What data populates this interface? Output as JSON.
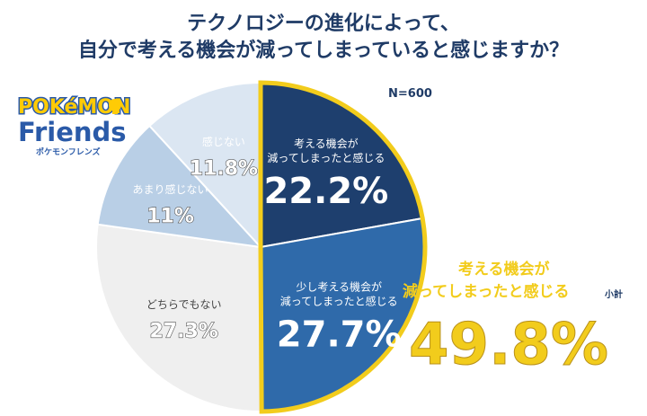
{
  "title_line1": "テクノロジーの進化によって、",
  "title_line2": "自分で考える機会が減ってしまっていると感じますか？",
  "sample_size": "N=600",
  "logo": {
    "brand": "POKéMON",
    "name": "Friends",
    "subtitle": "ポケモンフレンズ"
  },
  "colors": {
    "navy": "#1e3f6e",
    "blue": "#2f6aaa",
    "light_gray": "#efefef",
    "pale_blue": "#b9cfe6",
    "very_pale_blue": "#dbe6f2",
    "highlight": "#f2cc1c"
  },
  "chart_data": {
    "type": "pie",
    "start_angle_deg": 0,
    "direction": "clockwise",
    "slices": [
      {
        "label_lines": [
          "考える機会が",
          "減ってしまったと感じる"
        ],
        "value": 22.2,
        "value_text": "22.2%",
        "color": "#1e3f6e"
      },
      {
        "label_lines": [
          "少し考える機会が",
          "減ってしまったと感じる"
        ],
        "value": 27.7,
        "value_text": "27.7%",
        "color": "#2f6aaa"
      },
      {
        "label_lines": [
          "どちらでもない"
        ],
        "value": 27.3,
        "value_text": "27.3%",
        "color": "#efefef"
      },
      {
        "label_lines": [
          "あまり感じない"
        ],
        "value": 11.0,
        "value_text": "11%",
        "color": "#b9cfe6"
      },
      {
        "label_lines": [
          "感じない"
        ],
        "value": 11.8,
        "value_text": "11.8%",
        "color": "#dbe6f2"
      }
    ],
    "highlight_group": {
      "slices": [
        0,
        1
      ],
      "label_line1": "考える機会が",
      "label_line2": "減ってしまったと感じる",
      "suffix": "小計",
      "value_text": "49.8%"
    }
  }
}
